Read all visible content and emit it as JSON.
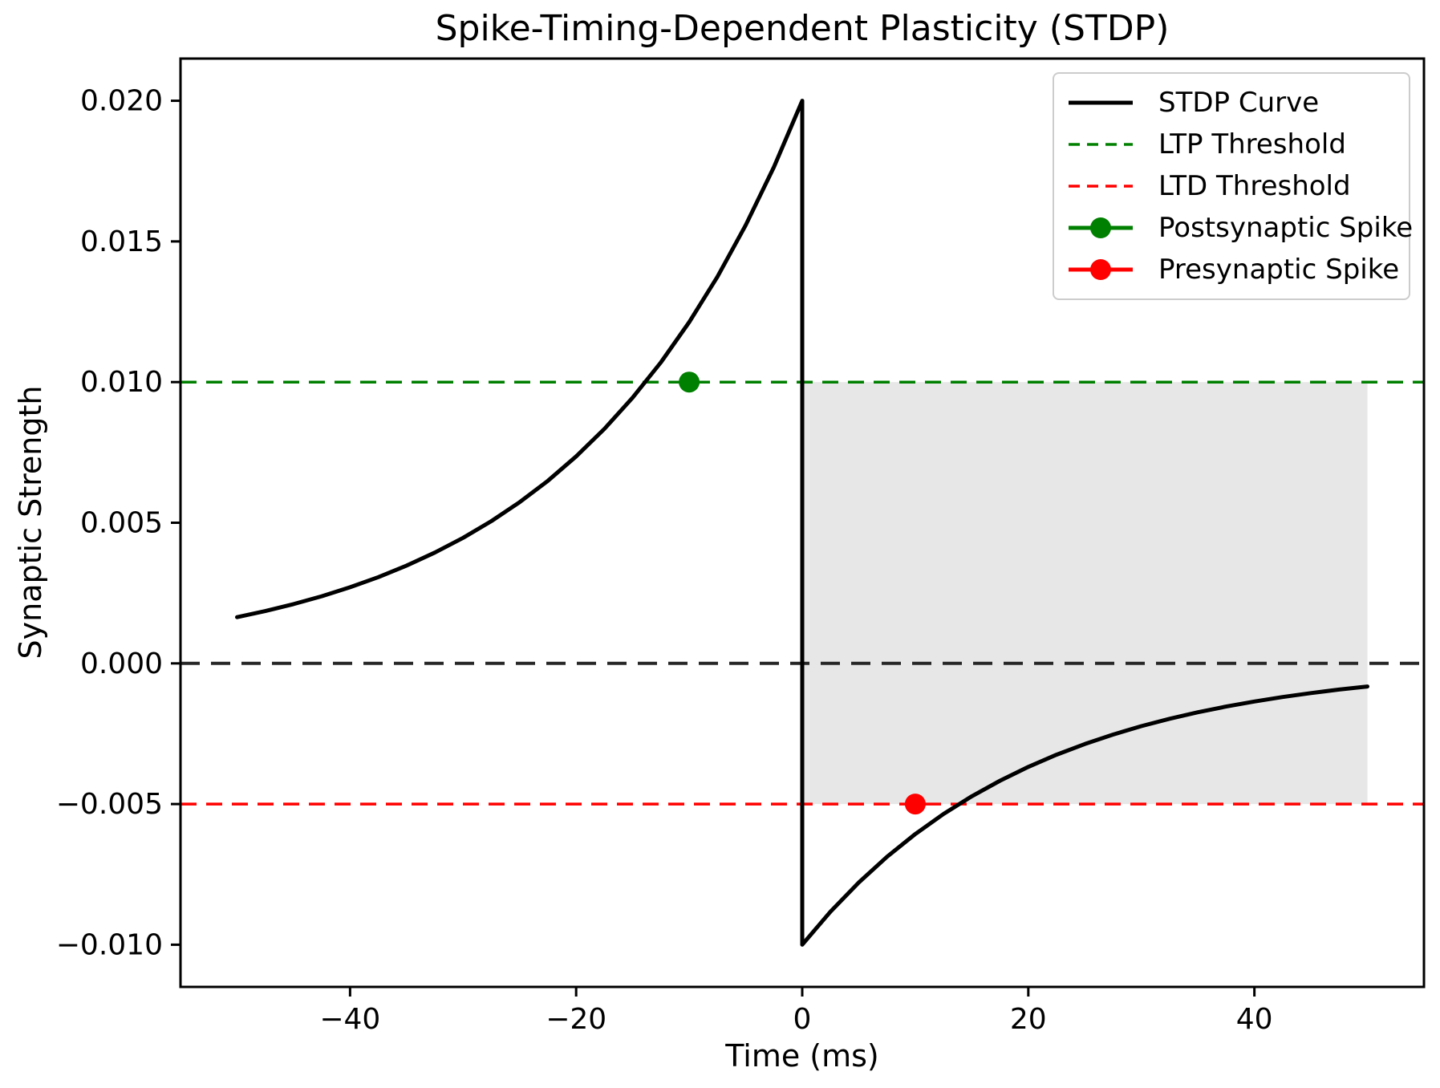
{
  "chart_data": {
    "type": "line",
    "title": "Spike-Timing-Dependent Plasticity (STDP)",
    "xlabel": "Time (ms)",
    "ylabel": "Synaptic Strength",
    "xlim": [
      -55,
      55
    ],
    "ylim": [
      -0.0115,
      0.0215
    ],
    "grid": false,
    "x_ticks": [
      -40,
      -20,
      0,
      20,
      40
    ],
    "x_tick_labels": [
      "−40",
      "−20",
      "0",
      "20",
      "40"
    ],
    "y_ticks": [
      0.02,
      0.015,
      0.01,
      0.005,
      0.0,
      -0.005,
      -0.01
    ],
    "y_tick_labels": [
      "0.020",
      "0.015",
      "0.010",
      "0.005",
      "0.000",
      "−0.005",
      "−0.010"
    ],
    "series": [
      {
        "name": "STDP Curve",
        "color": "#000000",
        "style": "solid",
        "width": 5,
        "points": [
          [
            -50,
            0.0016417
          ],
          [
            -47.5,
            0.0018603
          ],
          [
            -45,
            0.002108
          ],
          [
            -42.5,
            0.0023887
          ],
          [
            -40,
            0.0027067
          ],
          [
            -37.5,
            0.0030671
          ],
          [
            -35,
            0.0034755
          ],
          [
            -32.5,
            0.0039382
          ],
          [
            -30,
            0.0044626
          ],
          [
            -27.5,
            0.0050568
          ],
          [
            -25,
            0.0057301
          ],
          [
            -22.5,
            0.006493
          ],
          [
            -20,
            0.0073576
          ],
          [
            -17.5,
            0.0083372
          ],
          [
            -15,
            0.0094473
          ],
          [
            -12.5,
            0.0107052
          ],
          [
            -10,
            0.0121306
          ],
          [
            -7.5,
            0.0137458
          ],
          [
            -5,
            0.015576
          ],
          [
            -2.5,
            0.0176499
          ],
          [
            0,
            0.02
          ],
          [
            0,
            -0.01
          ],
          [
            2.5,
            -0.008825
          ],
          [
            5,
            -0.007788
          ],
          [
            7.5,
            -0.0068729
          ],
          [
            10,
            -0.0060653
          ],
          [
            12.5,
            -0.0053526
          ],
          [
            15,
            -0.0047237
          ],
          [
            17.5,
            -0.0041686
          ],
          [
            20,
            -0.0036788
          ],
          [
            22.5,
            -0.0032465
          ],
          [
            25,
            -0.002865
          ],
          [
            27.5,
            -0.0025284
          ],
          [
            30,
            -0.0022313
          ],
          [
            32.5,
            -0.0019691
          ],
          [
            35,
            -0.0017377
          ],
          [
            37.5,
            -0.0015335
          ],
          [
            40,
            -0.0013534
          ],
          [
            42.5,
            -0.0011943
          ],
          [
            45,
            -0.001054
          ],
          [
            47.5,
            -0.0009301
          ],
          [
            50,
            -0.0008208
          ]
        ]
      }
    ],
    "reference_lines": [
      {
        "name": "LTP Threshold",
        "y": 0.01,
        "color": "#008000",
        "style": "dashed",
        "width": 3.5
      },
      {
        "name": "LTD Threshold",
        "y": -0.005,
        "color": "#ff0000",
        "style": "dashed",
        "width": 3.5
      },
      {
        "name": "Zero Line",
        "y": 0.0,
        "color": "#262626",
        "style": "dashed",
        "width": 4
      }
    ],
    "markers": [
      {
        "name": "Postsynaptic Spike",
        "x": -10,
        "y": 0.01,
        "color": "#008000",
        "radius": 13
      },
      {
        "name": "Presynaptic Spike",
        "x": 10,
        "y": -0.005,
        "color": "#ff0000",
        "radius": 13
      }
    ],
    "shaded_region": {
      "x0": 0,
      "x1": 50,
      "y0": -0.005,
      "y1": 0.01,
      "color": "#e7e7e7"
    },
    "legend": {
      "position": "upper right",
      "items": [
        {
          "label": "STDP Curve",
          "color": "#000000",
          "line": "solid",
          "marker": false
        },
        {
          "label": "LTP Threshold",
          "color": "#008000",
          "line": "dashed",
          "marker": false
        },
        {
          "label": "LTD Threshold",
          "color": "#ff0000",
          "line": "dashed",
          "marker": false
        },
        {
          "label": "Postsynaptic Spike",
          "color": "#008000",
          "line": "solid",
          "marker": true
        },
        {
          "label": "Presynaptic Spike",
          "color": "#ff0000",
          "line": "solid",
          "marker": true
        }
      ]
    },
    "colors": {
      "frame": "#000000",
      "background": "#ffffff",
      "tick_text": "#000000"
    }
  }
}
